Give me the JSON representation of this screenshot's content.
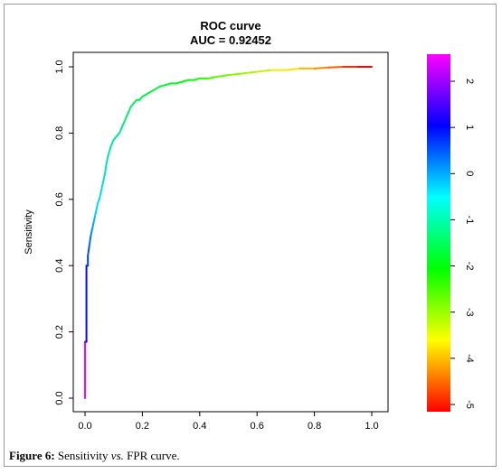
{
  "chart_data": {
    "type": "line",
    "title": "ROC curve",
    "subtitle": "AUC = 0.92452",
    "xlabel": "",
    "ylabel": "Sensitivity",
    "xlim": [
      0.0,
      1.0
    ],
    "ylim": [
      0.0,
      1.0
    ],
    "x_ticks": [
      "0.0",
      "0.2",
      "0.4",
      "0.6",
      "0.8",
      "1.0"
    ],
    "y_ticks": [
      "0.0",
      "0.2",
      "0.4",
      "0.6",
      "0.8",
      "1.0"
    ],
    "grid": false,
    "legend": "colorbar-right",
    "series": [
      {
        "x": [
          0.0,
          0.0,
          0.005,
          0.005,
          0.01,
          0.01,
          0.015,
          0.02,
          0.025,
          0.03,
          0.035,
          0.04,
          0.045,
          0.05,
          0.055,
          0.06,
          0.065,
          0.07,
          0.075,
          0.08,
          0.09,
          0.1,
          0.11,
          0.12,
          0.13,
          0.14,
          0.15,
          0.16,
          0.17,
          0.18,
          0.19,
          0.2,
          0.22,
          0.24,
          0.26,
          0.28,
          0.3,
          0.32,
          0.34,
          0.36,
          0.38,
          0.4,
          0.43,
          0.46,
          0.5,
          0.55,
          0.6,
          0.65,
          0.7,
          0.75,
          0.8,
          0.85,
          0.9,
          0.95,
          1.0
        ],
        "y": [
          0.0,
          0.17,
          0.17,
          0.4,
          0.4,
          0.43,
          0.46,
          0.49,
          0.51,
          0.53,
          0.55,
          0.57,
          0.59,
          0.6,
          0.62,
          0.64,
          0.66,
          0.68,
          0.71,
          0.73,
          0.76,
          0.78,
          0.79,
          0.8,
          0.82,
          0.84,
          0.86,
          0.88,
          0.89,
          0.9,
          0.9,
          0.91,
          0.92,
          0.93,
          0.94,
          0.945,
          0.95,
          0.95,
          0.955,
          0.96,
          0.96,
          0.965,
          0.965,
          0.97,
          0.975,
          0.98,
          0.985,
          0.99,
          0.99,
          0.995,
          0.995,
          0.998,
          1.0,
          1.0,
          1.0
        ]
      }
    ],
    "colorbar": {
      "ticks": [
        "2",
        "1",
        "0",
        "-1",
        "-2",
        "-3",
        "-4",
        "-5"
      ],
      "colors": [
        "#ff00ff",
        "#0000ff",
        "#00ffff",
        "#00ff00",
        "#ffff00",
        "#ff0000"
      ]
    }
  },
  "caption": {
    "label": "Figure 6:",
    "text_before": " Sensitivity ",
    "text_italic": "vs.",
    "text_after": " FPR curve."
  }
}
